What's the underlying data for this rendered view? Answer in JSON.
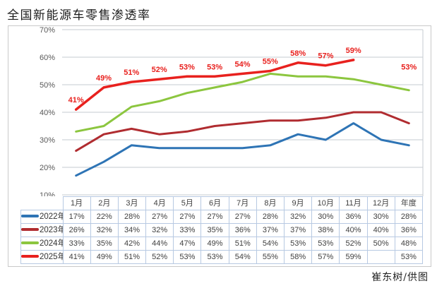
{
  "page": {
    "title": "全国新能源车零售渗透率",
    "credit": "崔东树/供图"
  },
  "chart_data": {
    "type": "line",
    "title": "全国新能源车零售渗透率",
    "categories": [
      "1月",
      "2月",
      "3月",
      "4月",
      "5月",
      "6月",
      "7月",
      "8月",
      "9月",
      "10月",
      "11月",
      "12月",
      "年度"
    ],
    "y_axis": {
      "min": 10,
      "max": 70,
      "step": 10,
      "tick_suffix": "%",
      "ticks": [
        "70%",
        "60%",
        "50%",
        "40%",
        "30%",
        "20%",
        "10%"
      ]
    },
    "grid": "horizontal",
    "legend_position": "table-left",
    "label_suffix": "%",
    "series": [
      {
        "name": "2022年",
        "color": "#2E74B5",
        "data_labels": false,
        "values": [
          17,
          22,
          28,
          27,
          27,
          27,
          27,
          28,
          32,
          30,
          36,
          30,
          28
        ]
      },
      {
        "name": "2023年",
        "color": "#B02C30",
        "data_labels": false,
        "values": [
          26,
          32,
          34,
          32,
          33,
          35,
          36,
          37,
          37,
          38,
          40,
          40,
          36
        ]
      },
      {
        "name": "2024年",
        "color": "#8CC63F",
        "data_labels": false,
        "values": [
          33,
          35,
          42,
          44,
          47,
          49,
          51,
          54,
          53,
          53,
          52,
          50,
          48
        ]
      },
      {
        "name": "2025年",
        "color": "#E8211E",
        "data_labels": true,
        "values": [
          41,
          49,
          51,
          52,
          53,
          53,
          54,
          55,
          58,
          57,
          59,
          null,
          53
        ]
      }
    ]
  },
  "table": {
    "corner": "",
    "columns": [
      "1月",
      "2月",
      "3月",
      "4月",
      "5月",
      "6月",
      "7月",
      "8月",
      "9月",
      "10月",
      "11月",
      "12月",
      "年度"
    ],
    "rows": [
      {
        "label": "2022年",
        "color": "#2E74B5",
        "cells": [
          "17%",
          "22%",
          "28%",
          "27%",
          "27%",
          "27%",
          "27%",
          "28%",
          "32%",
          "30%",
          "36%",
          "30%",
          "28%"
        ]
      },
      {
        "label": "2023年",
        "color": "#B02C30",
        "cells": [
          "26%",
          "32%",
          "34%",
          "32%",
          "33%",
          "35%",
          "36%",
          "37%",
          "37%",
          "38%",
          "40%",
          "40%",
          "36%"
        ]
      },
      {
        "label": "2024年",
        "color": "#8CC63F",
        "cells": [
          "33%",
          "35%",
          "42%",
          "44%",
          "47%",
          "49%",
          "51%",
          "54%",
          "53%",
          "53%",
          "52%",
          "50%",
          "48%"
        ]
      },
      {
        "label": "2025年",
        "color": "#E8211E",
        "cells": [
          "41%",
          "49%",
          "51%",
          "52%",
          "53%",
          "53%",
          "54%",
          "55%",
          "58%",
          "57%",
          "59%",
          "",
          "53%"
        ]
      }
    ]
  },
  "colors": {
    "grid": "#c6cbd0",
    "axis_text": "#595959",
    "table_border": "#b7c9e2",
    "table_text": "#404040",
    "figure_border": "#c9c9c9"
  }
}
